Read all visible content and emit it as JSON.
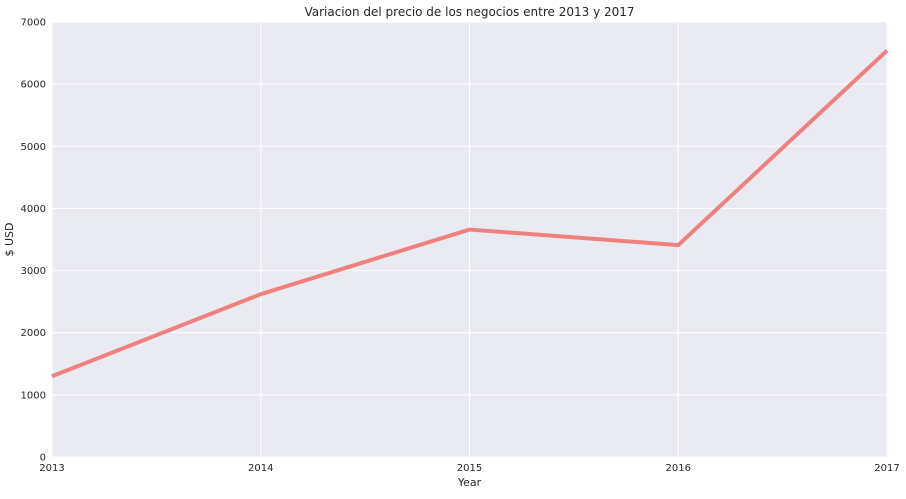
{
  "chart_data": {
    "type": "line",
    "title": "Variacion del precio de los negocios entre 2013 y 2017",
    "xlabel": "Year",
    "ylabel": "$ USD",
    "x": [
      2013,
      2014,
      2015,
      2016,
      2017
    ],
    "series": [
      {
        "values": [
          1300,
          2620,
          3660,
          3410,
          6540
        ],
        "color": "#f08080"
      }
    ],
    "xlim": [
      2013,
      2017
    ],
    "ylim": [
      0,
      7000
    ],
    "x_ticks": [
      "2013",
      "2014",
      "2015",
      "2016",
      "2017"
    ],
    "y_ticks": [
      "0",
      "1000",
      "2000",
      "3000",
      "4000",
      "5000",
      "6000",
      "7000"
    ],
    "grid": true,
    "background": "#eaeaf2",
    "grid_color": "#ffffff"
  }
}
